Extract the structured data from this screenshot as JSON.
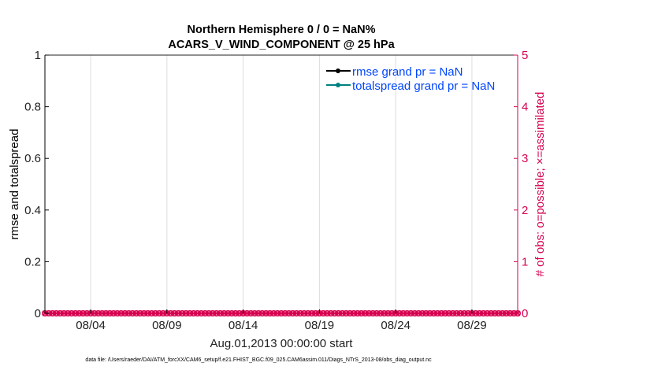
{
  "chart_data": {
    "type": "line",
    "title": [
      "Northern Hemisphere 0 / 0 = NaN%",
      "ACARS_V_WIND_COMPONENT @ 25 hPa"
    ],
    "xlabel": "Aug.01,2013 00:00:00 start",
    "ylabel": "rmse and totalspread",
    "ylabel_right": "# of obs: o=possible; ×=assimilated",
    "footnote": "data file: /Users/raeder/DAI/ATM_forcXX/CAM6_setup/f.e21.FHIST_BGC.f09_025.CAM6assim.011/Diags_NTrS_2013-08/obs_diag_output.nc",
    "xlim": [
      "2013-08-01 00:00",
      "2013-09-01 00:00"
    ],
    "xticks": [
      {
        "date": "2013-08-04",
        "label": "08/04"
      },
      {
        "date": "2013-08-09",
        "label": "08/09"
      },
      {
        "date": "2013-08-14",
        "label": "08/14"
      },
      {
        "date": "2013-08-19",
        "label": "08/19"
      },
      {
        "date": "2013-08-24",
        "label": "08/24"
      },
      {
        "date": "2013-08-29",
        "label": "08/29"
      }
    ],
    "ylim": [
      0,
      1
    ],
    "yticks": [
      "0",
      "0.2",
      "0.4",
      "0.6",
      "0.8",
      "1"
    ],
    "ylim_right": [
      0,
      5
    ],
    "yticks_right": [
      "0",
      "1",
      "2",
      "3",
      "4",
      "5"
    ],
    "grid": "vertical",
    "legend_placement": "top-right",
    "colors": {
      "rmse": "#000000",
      "totalspread": "#008080",
      "obs": "#d6004f",
      "legend_text": "#0045ff"
    },
    "series": [
      {
        "name": "rmse grand pr = NaN",
        "axis": "left",
        "values": "NaN"
      },
      {
        "name": "totalspread grand pr = NaN",
        "axis": "left",
        "values": "NaN"
      },
      {
        "axis": "right",
        "marker": "o",
        "value_at_every_time": 0
      },
      {
        "axis": "right",
        "marker": "x",
        "value_at_every_time": 0
      }
    ],
    "obs_times_interval_hours": 6
  }
}
